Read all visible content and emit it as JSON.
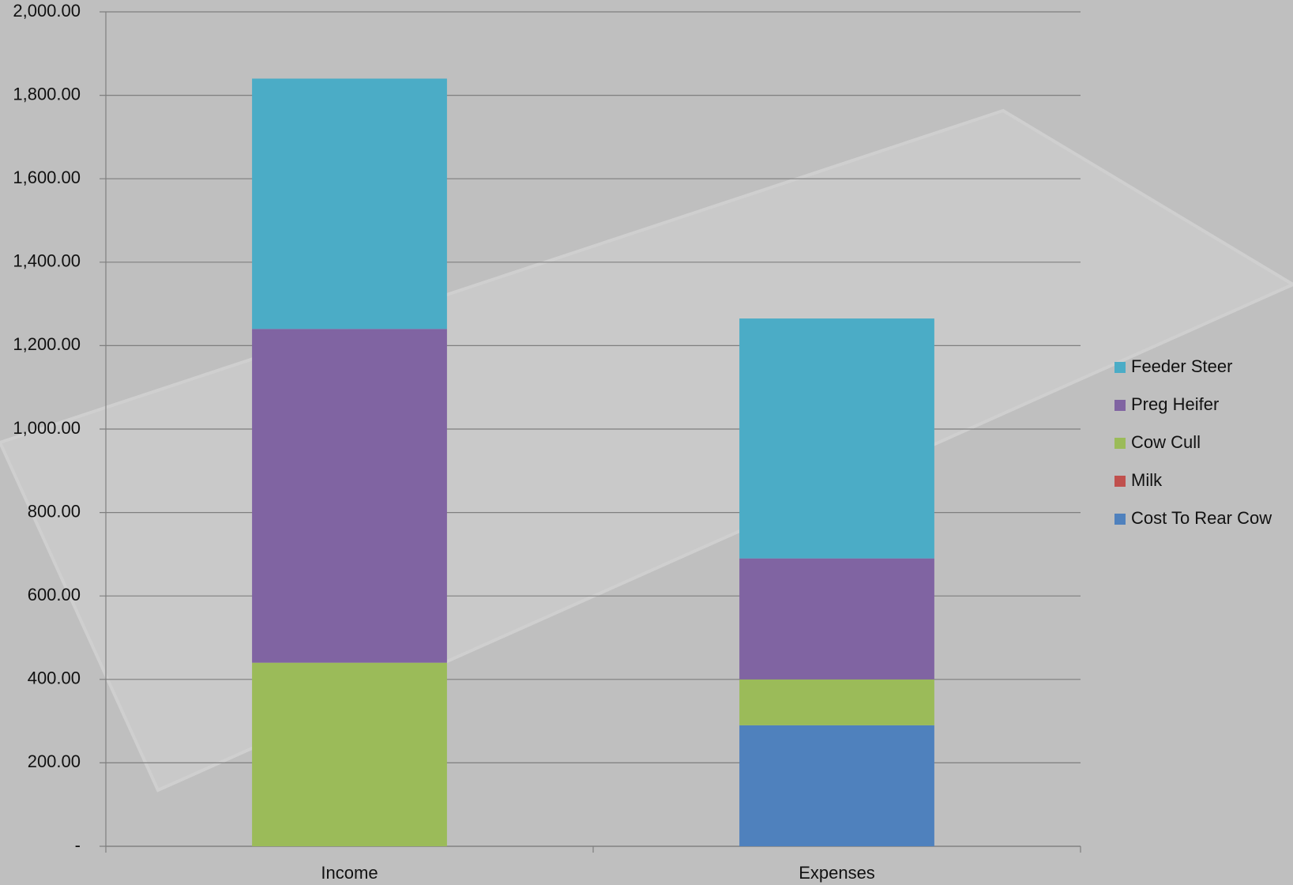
{
  "chart_data": {
    "type": "stacked_bar",
    "categories": [
      "Income",
      "Expenses"
    ],
    "series": [
      {
        "name": "Cost To Rear Cow",
        "color": "#4f81bd",
        "values": [
          0,
          290
        ]
      },
      {
        "name": "Milk",
        "color": "#c0504d",
        "values": [
          0,
          0
        ]
      },
      {
        "name": "Cow Cull",
        "color": "#9bbb59",
        "values": [
          440,
          110
        ]
      },
      {
        "name": "Preg Heifer",
        "color": "#8064a2",
        "values": [
          800,
          290
        ]
      },
      {
        "name": "Feeder Steer",
        "color": "#4bacc6",
        "values": [
          600,
          575
        ]
      }
    ],
    "ylim": [
      0,
      2000
    ],
    "yticks": [
      {
        "value": 0,
        "label": "-"
      },
      {
        "value": 200,
        "label": "200.00"
      },
      {
        "value": 400,
        "label": "400.00"
      },
      {
        "value": 600,
        "label": "600.00"
      },
      {
        "value": 800,
        "label": "800.00"
      },
      {
        "value": 1000,
        "label": "1,000.00"
      },
      {
        "value": 1200,
        "label": "1,200.00"
      },
      {
        "value": 1400,
        "label": "1,400.00"
      },
      {
        "value": 1600,
        "label": "1,600.00"
      },
      {
        "value": 1800,
        "label": "1,800.00"
      },
      {
        "value": 2000,
        "label": "2,000.00"
      }
    ],
    "grid": true,
    "legend": "right"
  }
}
